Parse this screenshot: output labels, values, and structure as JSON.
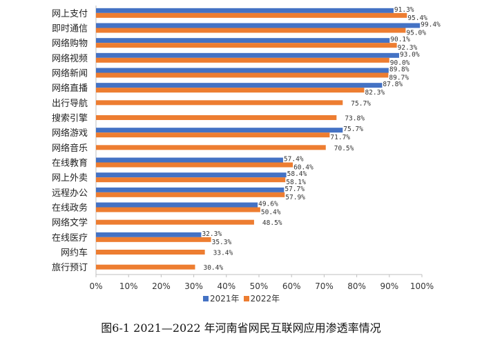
{
  "chart_data": {
    "type": "bar",
    "orientation": "horizontal",
    "categories": [
      "网上支付",
      "即时通信",
      "网络购物",
      "网络视频",
      "网络新闻",
      "网络直播",
      "出行导航",
      "搜索引擎",
      "网络游戏",
      "网络音乐",
      "在线教育",
      "网上外卖",
      "远程办公",
      "在线政务",
      "网络文学",
      "在线医疗",
      "网约车",
      "旅行预订"
    ],
    "series": [
      {
        "name": "2021年",
        "color": "#4472C4",
        "values": [
          91.3,
          99.4,
          90.1,
          93.0,
          89.8,
          87.8,
          null,
          null,
          75.7,
          null,
          57.4,
          58.4,
          57.7,
          49.6,
          null,
          32.3,
          null,
          null
        ],
        "labels": [
          "91.3%",
          "99.4%",
          "90.1%",
          "93.0%",
          "89.8%",
          "87.8%",
          null,
          null,
          "75.7%",
          null,
          "57.4%",
          "58.4%",
          "57.7%",
          "49.6%",
          null,
          "32.3%",
          null,
          null
        ]
      },
      {
        "name": "2022年",
        "color": "#ED7D31",
        "values": [
          95.4,
          95.0,
          92.3,
          90.0,
          89.7,
          82.3,
          75.7,
          73.8,
          71.7,
          70.5,
          60.4,
          58.1,
          57.9,
          50.4,
          48.5,
          35.3,
          33.4,
          30.4
        ],
        "labels": [
          "95.4%",
          "95.0%",
          "92.3%",
          "90.0%",
          "89.7%",
          "82.3%",
          "75.7%",
          "73.8%",
          "71.7%",
          "70.5%",
          "60.4%",
          "58.1%",
          "57.9%",
          "50.4%",
          "48.5%",
          "35.3%",
          "33.4%",
          "30.4%"
        ]
      }
    ],
    "xlim": [
      0,
      100
    ],
    "x_ticks": [
      "0%",
      "10%",
      "20%",
      "30%",
      "40%",
      "50%",
      "60%",
      "70%",
      "80%",
      "90%",
      "100%"
    ],
    "grid": false,
    "legend": "bottom"
  },
  "legend": {
    "s1": "2021年",
    "s2": "2022年"
  },
  "caption": "图6-1  2021—2022 年河南省网民互联网应用渗透率情况",
  "colors": {
    "s1": "#4472C4",
    "s2": "#ED7D31",
    "axis": "#bfbfbf"
  }
}
